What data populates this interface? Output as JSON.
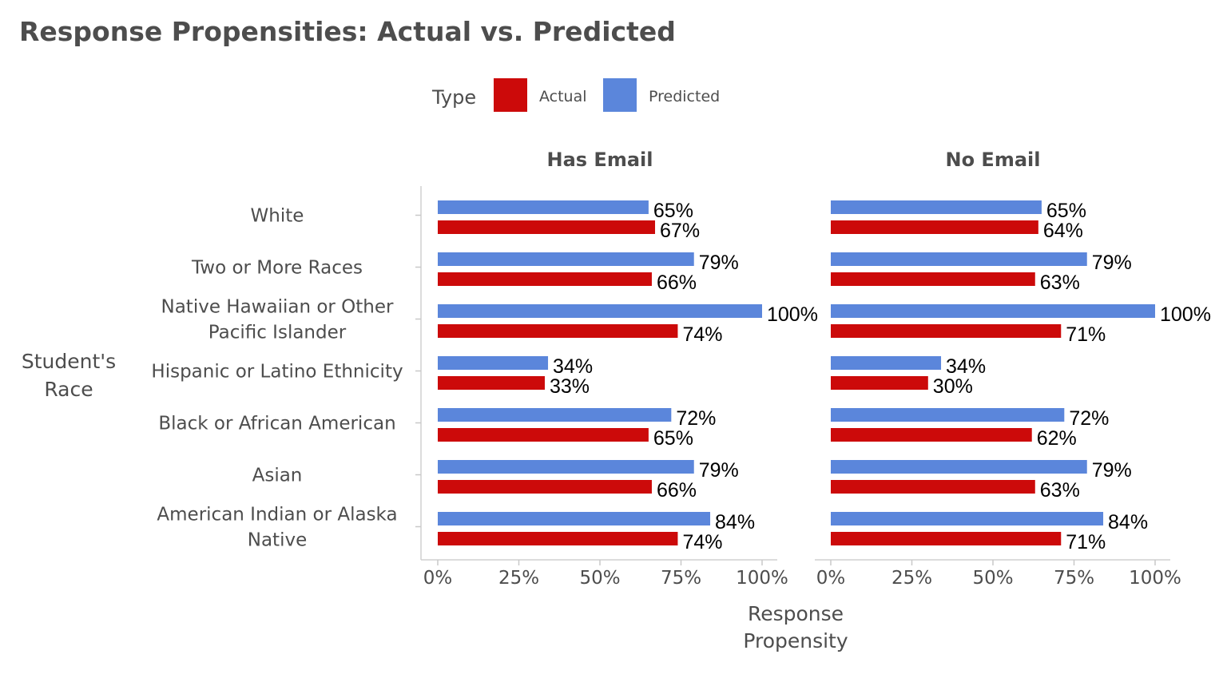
{
  "title": "Response Propensities: Actual vs. Predicted",
  "legend": {
    "title": "Type",
    "items": [
      {
        "label": "Actual",
        "color": "#cc0a0a"
      },
      {
        "label": "Predicted",
        "color": "#5b86db"
      }
    ]
  },
  "chart_data": {
    "type": "bar",
    "orientation": "horizontal",
    "facets": [
      "Has Email",
      "No Email"
    ],
    "categories": [
      "White",
      "Two or More Races",
      "Native Hawaiian or Other Pacific Islander",
      "Hispanic or Latino Ethnicity",
      "Black or African American",
      "Asian",
      "American Indian or Alaska Native"
    ],
    "category_label_lines": [
      [
        "White"
      ],
      [
        "Two or More Races"
      ],
      [
        "Native Hawaiian or Other",
        "Pacific Islander"
      ],
      [
        "Hispanic or Latino Ethnicity"
      ],
      [
        "Black or African American"
      ],
      [
        "Asian"
      ],
      [
        "American Indian or Alaska",
        "Native"
      ]
    ],
    "series": [
      {
        "name": "Predicted",
        "color": "#5b86db",
        "values": {
          "Has Email": [
            65,
            79,
            100,
            34,
            72,
            79,
            84
          ],
          "No Email": [
            65,
            79,
            100,
            34,
            72,
            79,
            84
          ]
        }
      },
      {
        "name": "Actual",
        "color": "#cc0a0a",
        "values": {
          "Has Email": [
            67,
            66,
            74,
            33,
            65,
            66,
            74
          ],
          "No Email": [
            64,
            63,
            71,
            30,
            62,
            63,
            71
          ]
        }
      }
    ],
    "xlabel": [
      "Response",
      "Propensity"
    ],
    "ylabel": [
      "Student's",
      "Race"
    ],
    "xlim": [
      0,
      100
    ],
    "xticks": [
      0,
      25,
      50,
      75,
      100
    ],
    "xtick_labels": [
      "0%",
      "25%",
      "50%",
      "75%",
      "100%"
    ],
    "value_suffix": "%",
    "grid": false,
    "legend_position": "top"
  }
}
